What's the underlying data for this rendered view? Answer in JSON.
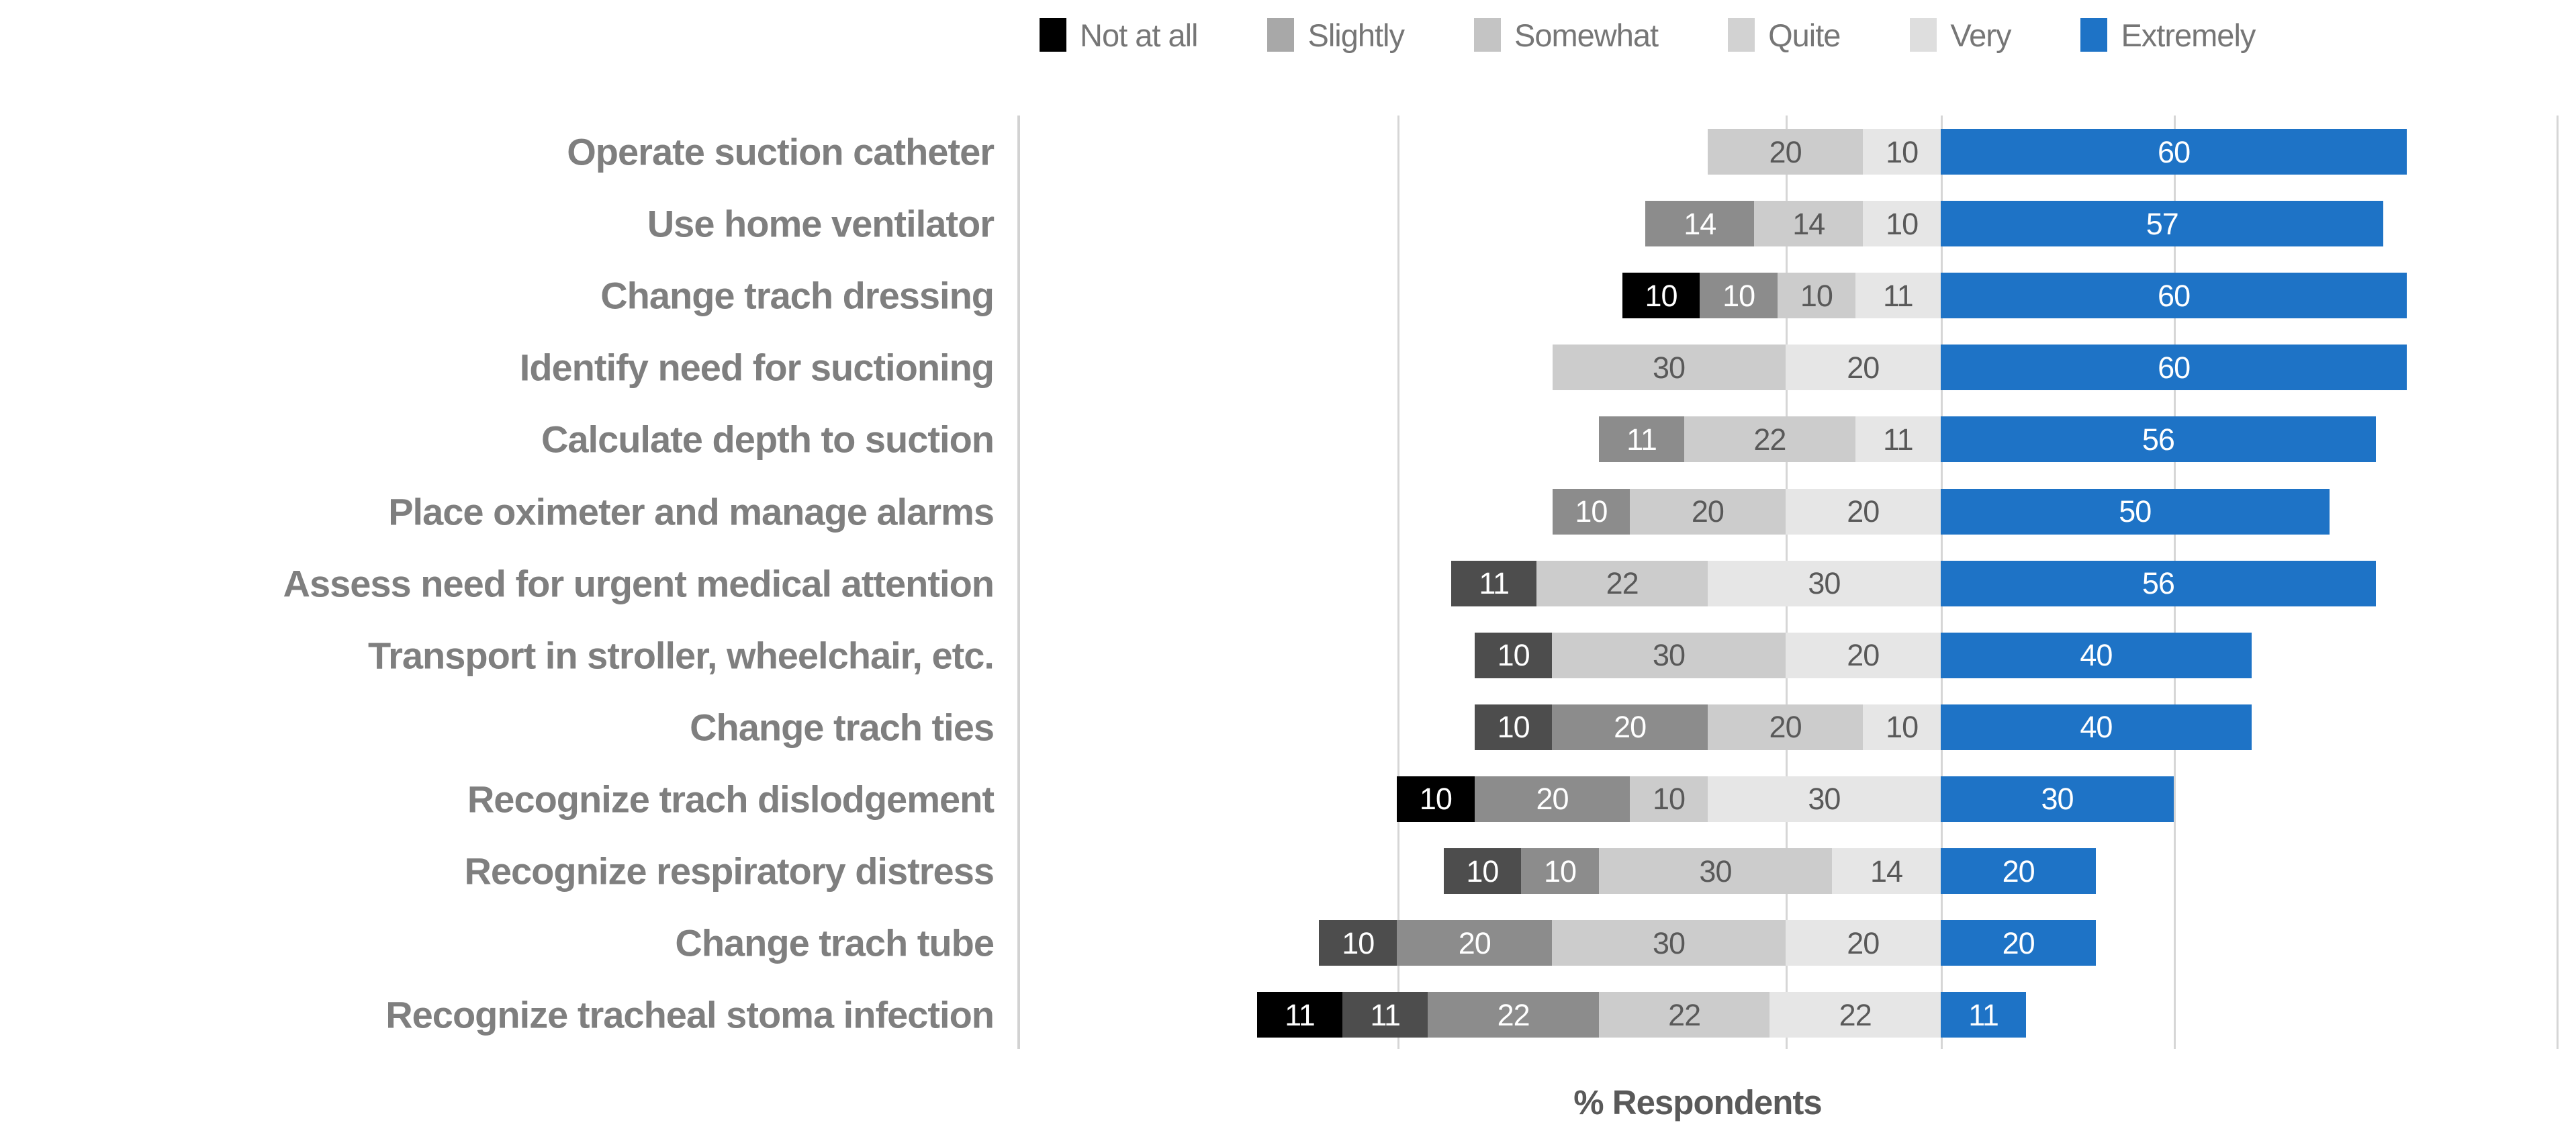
{
  "chart_data": {
    "type": "bar",
    "variant": "horizontal-diverging-stacked",
    "title": "",
    "xlabel": "% Respondents",
    "legend_position": "top",
    "grid": true,
    "series": [
      {
        "name": "Not at all",
        "bar_color": "#000000",
        "legend_swatch_color": "#000000",
        "value_text_color": "#ffffff"
      },
      {
        "name": "Slightly",
        "bar_color": "#4d4d4d",
        "legend_swatch_color": "#a8a8a8",
        "value_text_color": "#ffffff"
      },
      {
        "name": "Somewhat",
        "bar_color": "#8c8c8c",
        "legend_swatch_color": "#c4c4c4",
        "value_text_color": "#ffffff"
      },
      {
        "name": "Quite",
        "bar_color": "#cccccc",
        "legend_swatch_color": "#d2d2d2",
        "value_text_color": "#595959"
      },
      {
        "name": "Very",
        "bar_color": "#e6e6e6",
        "legend_swatch_color": "#dedede",
        "value_text_color": "#595959"
      },
      {
        "name": "Extremely",
        "bar_color": "#1e73c6",
        "legend_swatch_color": "#1e73c6",
        "value_text_color": "#ffffff"
      }
    ],
    "categories": [
      "Operate suction catheter",
      "Use home ventilator",
      "Change trach dressing",
      "Identify need for suctioning",
      "Calculate depth to suction",
      "Place  oximeter and manage alarms",
      "Assess need for urgent medical attention",
      "Transport in stroller, wheelchair, etc.",
      "Change trach ties",
      "Recognize trach dislodgement",
      "Recognize respiratory distress",
      "Change trach tube",
      "Recognize tracheal stoma infection"
    ],
    "rows": [
      {
        "task": "Operate suction catheter",
        "values": [
          0,
          0,
          0,
          20,
          10,
          60
        ]
      },
      {
        "task": "Use home ventilator",
        "values": [
          0,
          0,
          14,
          14,
          10,
          57
        ]
      },
      {
        "task": "Change trach dressing",
        "values": [
          10,
          0,
          10,
          10,
          11,
          60
        ]
      },
      {
        "task": "Identify need for suctioning",
        "values": [
          0,
          0,
          0,
          30,
          20,
          60
        ]
      },
      {
        "task": "Calculate depth to suction",
        "values": [
          0,
          0,
          11,
          22,
          11,
          56
        ]
      },
      {
        "task": "Place  oximeter and manage alarms",
        "values": [
          0,
          0,
          10,
          20,
          20,
          50
        ]
      },
      {
        "task": "Assess need for urgent medical attention",
        "values": [
          0,
          11,
          0,
          22,
          30,
          56
        ]
      },
      {
        "task": "Transport in stroller, wheelchair, etc.",
        "values": [
          0,
          10,
          0,
          30,
          20,
          40
        ]
      },
      {
        "task": "Change trach ties",
        "values": [
          0,
          10,
          20,
          20,
          10,
          40
        ]
      },
      {
        "task": "Recognize trach dislodgement",
        "values": [
          10,
          0,
          20,
          10,
          30,
          30
        ]
      },
      {
        "task": "Recognize respiratory distress",
        "values": [
          0,
          10,
          10,
          30,
          14,
          20
        ]
      },
      {
        "task": "Change trach tube",
        "values": [
          0,
          10,
          20,
          30,
          20,
          20
        ]
      },
      {
        "task": "Recognize tracheal stoma infection",
        "values": [
          11,
          11,
          22,
          22,
          22,
          11
        ]
      }
    ]
  },
  "colors": {
    "background": "#ffffff",
    "category_label": "#7f7f7f",
    "legend_text": "#767676",
    "axis_title": "#595959",
    "gridline": "#d6d6d6"
  }
}
